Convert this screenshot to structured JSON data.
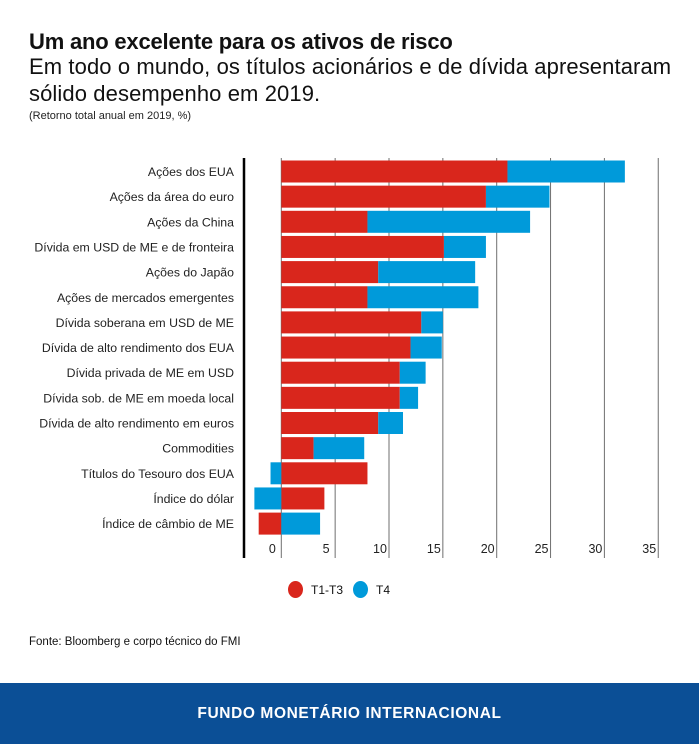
{
  "header": {
    "title": "Um ano excelente para os ativos de risco",
    "subtitle": "Em todo o mundo, os títulos acionários e de dívida apresentaram sólido desempenho em 2019.",
    "note": "(Retorno total anual em 2019, %)"
  },
  "chart_data": {
    "type": "bar",
    "orientation": "horizontal",
    "stacked": true,
    "categories": [
      "Ações dos EUA",
      "Ações da área do euro",
      "Ações da China",
      "Dívida em USD de ME e de fronteira",
      "Ações do Japão",
      "Ações de mercados emergentes",
      "Dívida soberana em USD de ME",
      "Dívida de alto rendimento dos EUA",
      "Dívida privada de ME em USD",
      "Dívida sob. de ME em moeda local",
      "Dívida de alto rendimento em euros",
      "Commodities",
      "Títulos do Tesouro dos EUA",
      "Índice do dólar",
      "Índice de câmbio de ME"
    ],
    "series": [
      {
        "name": "T1-T3",
        "color": "#d9261c",
        "values": [
          21.0,
          19.0,
          8.0,
          15.1,
          9.0,
          8.0,
          13.0,
          12.0,
          11.0,
          11.0,
          9.0,
          3.0,
          8.0,
          4.0,
          -2.1
        ]
      },
      {
        "name": "T4",
        "color": "#009ada",
        "values": [
          10.9,
          5.9,
          15.1,
          3.9,
          9.0,
          10.3,
          2.0,
          2.9,
          2.4,
          1.7,
          2.3,
          4.7,
          -1.0,
          -2.5,
          3.6
        ]
      }
    ],
    "xlim": [
      -3.5,
      35
    ],
    "xticks": [
      0,
      5,
      10,
      15,
      20,
      25,
      30,
      35
    ],
    "xtick_labels": [
      "0",
      "5",
      "10",
      "15",
      "20",
      "25",
      "30",
      "35"
    ],
    "grid": "vertical",
    "legend": "bottom"
  },
  "source": "Fonte: Bloomberg e corpo técnico do FMI",
  "footer": "FUNDO MONETÁRIO INTERNACIONAL"
}
